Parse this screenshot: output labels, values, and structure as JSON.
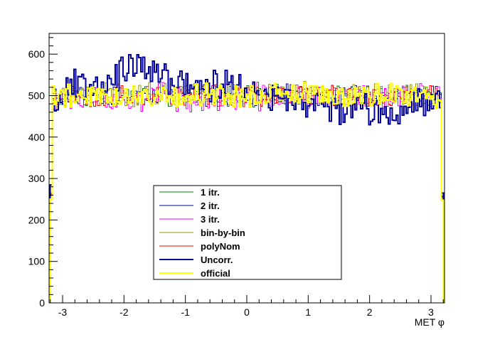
{
  "chart_data": {
    "type": "histogram",
    "xlabel": "MET φ",
    "xlim": [
      -3.22,
      3.22
    ],
    "ylim": [
      0,
      650
    ],
    "x_ticks": [
      -3,
      -2,
      -1,
      0,
      1,
      2,
      3
    ],
    "y_ticks": [
      0,
      100,
      200,
      300,
      400,
      500,
      600
    ],
    "grid": false,
    "legend_position": "center-bottom",
    "bins": {
      "count": 200,
      "range": [
        -3.2,
        3.2
      ]
    },
    "series": [
      {
        "name": "1 itr.",
        "color": "#008000",
        "stroke_width": 1,
        "mean": 500,
        "amp": 22,
        "seed": 11,
        "edge": [
          262,
          258
        ]
      },
      {
        "name": "2 itr.",
        "color": "#000099",
        "stroke_width": 1,
        "mean": 502,
        "amp": 23,
        "seed": 23,
        "edge": [
          264,
          256
        ]
      },
      {
        "name": "3 itr.",
        "color": "#ff00ff",
        "stroke_width": 1,
        "mean": 496,
        "amp": 30,
        "seed": 37,
        "edge": [
          258,
          252
        ]
      },
      {
        "name": "bin-by-bin",
        "color": "#999900",
        "stroke_width": 1,
        "mean": 503,
        "amp": 26,
        "seed": 41,
        "edge": [
          261,
          259
        ]
      },
      {
        "name": "polyNom",
        "color": "#ff0000",
        "stroke_width": 1,
        "mean": 499,
        "amp": 24,
        "seed": 53,
        "edge": [
          263,
          255
        ]
      },
      {
        "name": "Uncorr.",
        "color": "#000099",
        "stroke_width": 2,
        "mean": 500,
        "amp": 34,
        "seed": 67,
        "trend": [
          [
            -3.2,
            480
          ],
          [
            -2.8,
            530
          ],
          [
            -2.2,
            545
          ],
          [
            -1.8,
            570
          ],
          [
            -1.2,
            535
          ],
          [
            -0.6,
            520
          ],
          [
            -0.2,
            530
          ],
          [
            0.2,
            500
          ],
          [
            0.8,
            482
          ],
          [
            1.4,
            475
          ],
          [
            2.0,
            462
          ],
          [
            2.4,
            455
          ],
          [
            2.8,
            490
          ],
          [
            3.2,
            500
          ]
        ],
        "edge": [
          285,
          265
        ]
      },
      {
        "name": "official",
        "color": "#ffff00",
        "stroke_width": 2,
        "mean": 500,
        "amp": 26,
        "seed": 79,
        "edge": [
          250,
          248
        ]
      }
    ]
  },
  "legend": {
    "items": [
      "1 itr.",
      "2 itr.",
      "3 itr.",
      "bin-by-bin",
      "polyNom",
      "Uncorr.",
      "official"
    ]
  }
}
